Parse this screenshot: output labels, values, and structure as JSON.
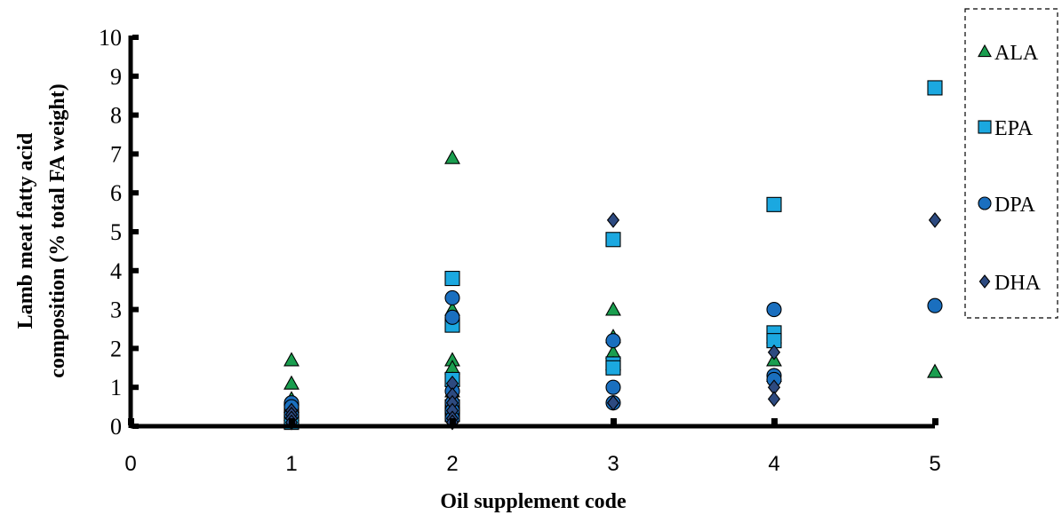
{
  "chart_data": {
    "type": "scatter",
    "xlabel": "Oil supplement code",
    "ylabel_lines": [
      "Lamb meat fatty acid",
      "composition (% total FA weight)"
    ],
    "xlim": [
      0,
      5
    ],
    "ylim": [
      0,
      10
    ],
    "x_ticks": [
      "0",
      "1",
      "2",
      "3",
      "4",
      "5"
    ],
    "y_ticks": [
      "0",
      "1",
      "2",
      "3",
      "4",
      "5",
      "6",
      "7",
      "8",
      "9",
      "10"
    ],
    "legend_position": "right",
    "series": [
      {
        "name": "ALA",
        "marker": "triangle",
        "color": "#1a9e4f",
        "points": [
          [
            1,
            1.7
          ],
          [
            1,
            1.1
          ],
          [
            1,
            0.7
          ],
          [
            1,
            0.5
          ],
          [
            1,
            0.3
          ],
          [
            2,
            6.9
          ],
          [
            2,
            3.0
          ],
          [
            2,
            1.7
          ],
          [
            2,
            1.5
          ],
          [
            2,
            1.2
          ],
          [
            2,
            0.9
          ],
          [
            3,
            3.0
          ],
          [
            3,
            2.3
          ],
          [
            3,
            1.9
          ],
          [
            3,
            1.6
          ],
          [
            4,
            2.3
          ],
          [
            4,
            1.7
          ],
          [
            4,
            1.3
          ],
          [
            5,
            1.4
          ]
        ]
      },
      {
        "name": "EPA",
        "marker": "square",
        "color": "#1ba8e0",
        "points": [
          [
            1,
            0.4
          ],
          [
            1,
            0.2
          ],
          [
            1,
            0.1
          ],
          [
            2,
            3.8
          ],
          [
            2,
            2.6
          ],
          [
            2,
            1.2
          ],
          [
            2,
            0.5
          ],
          [
            2,
            0.3
          ],
          [
            3,
            4.8
          ],
          [
            3,
            1.6
          ],
          [
            3,
            1.5
          ],
          [
            4,
            5.7
          ],
          [
            4,
            2.4
          ],
          [
            4,
            2.2
          ],
          [
            5,
            8.7
          ]
        ]
      },
      {
        "name": "DPA",
        "marker": "circle",
        "color": "#1a6fbf",
        "points": [
          [
            1,
            0.6
          ],
          [
            1,
            0.5
          ],
          [
            1,
            0.3
          ],
          [
            2,
            3.3
          ],
          [
            2,
            2.8
          ],
          [
            2,
            0.9
          ],
          [
            2,
            0.6
          ],
          [
            2,
            0.4
          ],
          [
            2,
            0.2
          ],
          [
            3,
            2.2
          ],
          [
            3,
            1.0
          ],
          [
            3,
            0.6
          ],
          [
            4,
            3.0
          ],
          [
            4,
            1.3
          ],
          [
            4,
            1.2
          ],
          [
            5,
            3.1
          ]
        ]
      },
      {
        "name": "DHA",
        "marker": "diamond",
        "color": "#2d4a80",
        "points": [
          [
            1,
            0.4
          ],
          [
            1,
            0.3
          ],
          [
            1,
            0.2
          ],
          [
            1,
            0.1
          ],
          [
            2,
            1.1
          ],
          [
            2,
            0.8
          ],
          [
            2,
            0.6
          ],
          [
            2,
            0.4
          ],
          [
            2,
            0.2
          ],
          [
            2,
            0.1
          ],
          [
            3,
            5.3
          ],
          [
            3,
            0.6
          ],
          [
            4,
            1.9
          ],
          [
            4,
            1.0
          ],
          [
            4,
            0.7
          ],
          [
            5,
            5.3
          ]
        ]
      }
    ]
  }
}
